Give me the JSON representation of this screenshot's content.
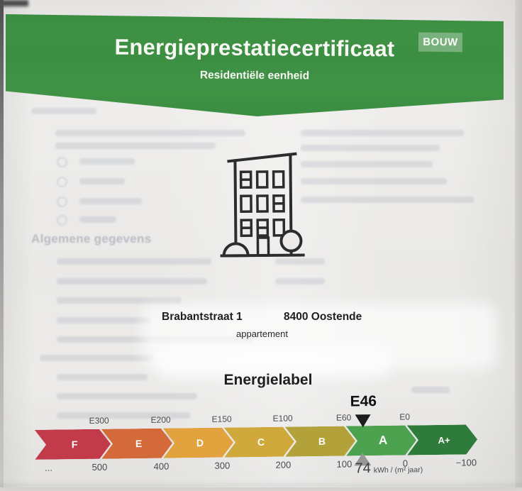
{
  "header": {
    "title": "Energieprestatiecertificaat",
    "subtitle": "Residentiële eenheid",
    "badge": "BOUW"
  },
  "address": {
    "street": "Brabantstraat 1",
    "city": "8400 Oostende",
    "unit_type": "appartement"
  },
  "background_bleedthrough": {
    "section_heading": "Algemene gegevens"
  },
  "energy_label": {
    "title": "Energielabel",
    "marker": {
      "label": "E46",
      "value": "74",
      "unit": "kWh / (m² jaar)"
    },
    "segments": [
      {
        "letter": "F",
        "color": "#c13b4b"
      },
      {
        "letter": "E",
        "color": "#d4693a"
      },
      {
        "letter": "D",
        "color": "#e2a33f"
      },
      {
        "letter": "C",
        "color": "#d0a93d"
      },
      {
        "letter": "B",
        "color": "#b3a13a"
      },
      {
        "letter": "A",
        "color": "#4da24f"
      },
      {
        "letter": "A+",
        "color": "#2f7b3b"
      }
    ],
    "top_ticks": [
      "E300",
      "E200",
      "E150",
      "E100",
      "E60",
      "E0"
    ],
    "bottom_ticks": [
      "...",
      "500",
      "400",
      "300",
      "200",
      "100",
      "0",
      "−100"
    ]
  }
}
